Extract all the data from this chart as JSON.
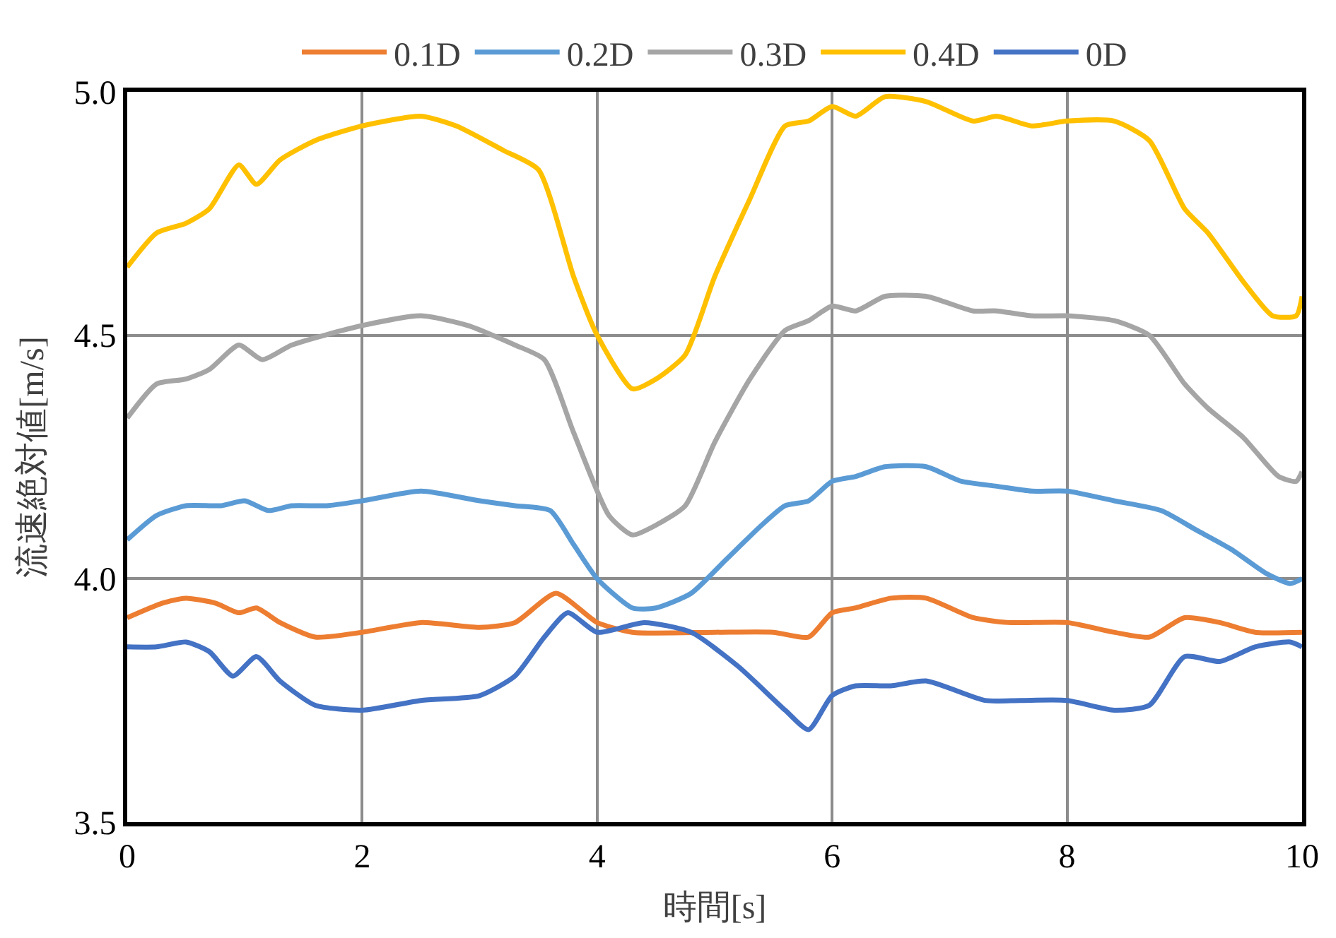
{
  "chart_data": {
    "type": "line",
    "xlabel": "時間[s]",
    "ylabel": "流速絶対値[m/s]",
    "xlim": [
      0,
      10
    ],
    "xticks": [
      0,
      2,
      4,
      6,
      8,
      10
    ],
    "ylim": [
      3.5,
      5.0
    ],
    "yticks": [
      {
        "value": 3.5,
        "label": "3.5"
      },
      {
        "value": 4.0,
        "label": "4.0"
      },
      {
        "value": 4.5,
        "label": "4.5"
      },
      {
        "value": 5.0,
        "label": "5.0"
      }
    ],
    "grid": true,
    "legend": "top",
    "marker": "none",
    "line_style": "solid",
    "series": [
      {
        "name": "0.1D",
        "color": "#ed7d31",
        "x": [
          0,
          0.3,
          0.5,
          0.75,
          0.95,
          1.1,
          1.3,
          1.6,
          2.0,
          2.5,
          3.0,
          3.3,
          3.65,
          4.0,
          4.3,
          5.0,
          5.5,
          5.8,
          6.0,
          6.2,
          6.5,
          6.8,
          7.2,
          7.5,
          8.0,
          8.4,
          8.7,
          9.0,
          9.3,
          9.6,
          10
        ],
        "values": [
          3.92,
          3.95,
          3.96,
          3.95,
          3.93,
          3.94,
          3.91,
          3.88,
          3.89,
          3.91,
          3.9,
          3.91,
          3.97,
          3.91,
          3.89,
          3.89,
          3.89,
          3.88,
          3.93,
          3.94,
          3.96,
          3.96,
          3.92,
          3.91,
          3.91,
          3.89,
          3.88,
          3.92,
          3.91,
          3.89,
          3.89
        ]
      },
      {
        "name": "0.2D",
        "color": "#5b9bd5",
        "x": [
          0,
          0.25,
          0.5,
          0.8,
          1.0,
          1.2,
          1.4,
          1.7,
          2.0,
          2.5,
          3.0,
          3.3,
          3.6,
          3.8,
          4.0,
          4.3,
          4.5,
          4.8,
          5.1,
          5.4,
          5.6,
          5.8,
          6.0,
          6.2,
          6.45,
          6.8,
          7.1,
          7.4,
          7.7,
          8.0,
          8.4,
          8.8,
          9.1,
          9.4,
          9.7,
          9.9,
          10
        ],
        "values": [
          4.08,
          4.13,
          4.15,
          4.15,
          4.16,
          4.14,
          4.15,
          4.15,
          4.16,
          4.18,
          4.16,
          4.15,
          4.14,
          4.07,
          4.0,
          3.94,
          3.94,
          3.97,
          4.04,
          4.11,
          4.15,
          4.16,
          4.2,
          4.21,
          4.23,
          4.23,
          4.2,
          4.19,
          4.18,
          4.18,
          4.16,
          4.14,
          4.1,
          4.06,
          4.01,
          3.99,
          4.0
        ]
      },
      {
        "name": "0.3D",
        "color": "#a5a5a5",
        "x": [
          0,
          0.25,
          0.5,
          0.7,
          0.95,
          1.15,
          1.4,
          2.0,
          2.5,
          2.9,
          3.3,
          3.55,
          3.8,
          4.1,
          4.3,
          4.5,
          4.75,
          5.0,
          5.3,
          5.6,
          5.8,
          6.0,
          6.2,
          6.45,
          6.8,
          7.2,
          7.4,
          7.7,
          8.0,
          8.4,
          8.7,
          9.0,
          9.2,
          9.5,
          9.8,
          9.95,
          10
        ],
        "values": [
          4.33,
          4.4,
          4.41,
          4.43,
          4.48,
          4.45,
          4.48,
          4.52,
          4.54,
          4.52,
          4.48,
          4.45,
          4.3,
          4.13,
          4.09,
          4.11,
          4.15,
          4.28,
          4.41,
          4.51,
          4.53,
          4.56,
          4.55,
          4.58,
          4.58,
          4.55,
          4.55,
          4.54,
          4.54,
          4.53,
          4.5,
          4.4,
          4.35,
          4.29,
          4.21,
          4.2,
          4.22
        ]
      },
      {
        "name": "0.4D",
        "color": "#ffc000",
        "x": [
          0,
          0.25,
          0.5,
          0.7,
          0.95,
          1.1,
          1.3,
          1.6,
          2.0,
          2.5,
          2.8,
          3.2,
          3.5,
          3.8,
          4.0,
          4.3,
          4.5,
          4.75,
          5.0,
          5.3,
          5.6,
          5.8,
          6.0,
          6.2,
          6.45,
          6.8,
          7.2,
          7.4,
          7.7,
          8.0,
          8.4,
          8.7,
          9.0,
          9.2,
          9.5,
          9.75,
          9.95,
          10
        ],
        "values": [
          4.64,
          4.71,
          4.73,
          4.76,
          4.85,
          4.81,
          4.86,
          4.9,
          4.93,
          4.95,
          4.93,
          4.88,
          4.84,
          4.62,
          4.5,
          4.39,
          4.41,
          4.46,
          4.62,
          4.78,
          4.93,
          4.94,
          4.97,
          4.95,
          4.99,
          4.98,
          4.94,
          4.95,
          4.93,
          4.94,
          4.94,
          4.9,
          4.76,
          4.71,
          4.61,
          4.54,
          4.54,
          4.58
        ]
      },
      {
        "name": "0D",
        "color": "#4472c4",
        "x": [
          0,
          0.25,
          0.5,
          0.7,
          0.9,
          1.1,
          1.3,
          1.6,
          2.0,
          2.5,
          3.0,
          3.3,
          3.55,
          3.75,
          4.0,
          4.4,
          4.8,
          5.2,
          5.6,
          5.8,
          6.0,
          6.2,
          6.5,
          6.8,
          7.3,
          7.6,
          8.0,
          8.4,
          8.7,
          9.0,
          9.3,
          9.6,
          9.9,
          10
        ],
        "values": [
          3.86,
          3.86,
          3.87,
          3.85,
          3.8,
          3.84,
          3.79,
          3.74,
          3.73,
          3.75,
          3.76,
          3.8,
          3.88,
          3.93,
          3.89,
          3.91,
          3.89,
          3.82,
          3.73,
          3.69,
          3.76,
          3.78,
          3.78,
          3.79,
          3.75,
          3.75,
          3.75,
          3.73,
          3.74,
          3.84,
          3.83,
          3.86,
          3.87,
          3.86
        ]
      }
    ]
  }
}
